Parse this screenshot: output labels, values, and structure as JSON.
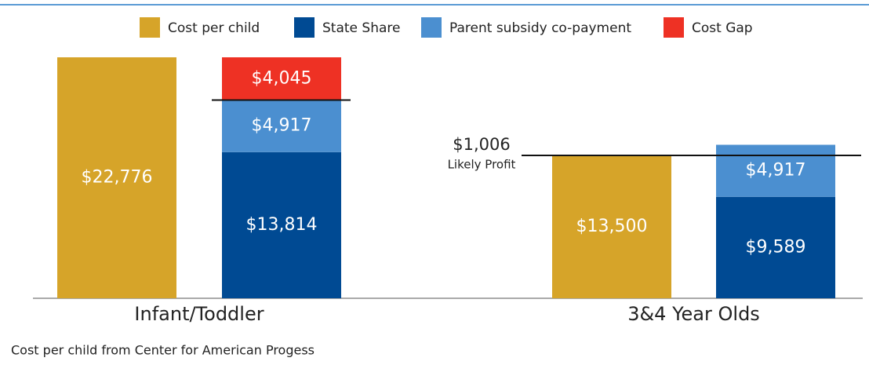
{
  "chart_data": {
    "type": "grouped-stacked-bar",
    "categories": [
      "Infant/Toddler",
      "3&4 Year Olds"
    ],
    "series": [
      {
        "name": "Cost per child",
        "color": "#d6a429",
        "stack": "cost",
        "values": [
          22776,
          13500
        ],
        "value_labels": [
          "$22,776",
          "$13,500"
        ]
      },
      {
        "name": "State Share",
        "color": "#004a93",
        "stack": "funding",
        "values": [
          13814,
          9589
        ],
        "value_labels": [
          "$13,814",
          "$9,589"
        ]
      },
      {
        "name": "Parent subsidy co-payment",
        "color": "#4b8fd0",
        "stack": "funding",
        "values": [
          4917,
          4917
        ],
        "value_labels": [
          "$4,917",
          "$4,917"
        ]
      },
      {
        "name": "Cost Gap",
        "color": "#ee3124",
        "stack": "funding",
        "values": [
          4045,
          null
        ],
        "value_labels": [
          "$4,045",
          null
        ]
      }
    ],
    "annotation": {
      "value": 1006,
      "label": "$1,006",
      "text": "Likely Profit"
    },
    "note": "Cost per child from Center for American Progess"
  }
}
